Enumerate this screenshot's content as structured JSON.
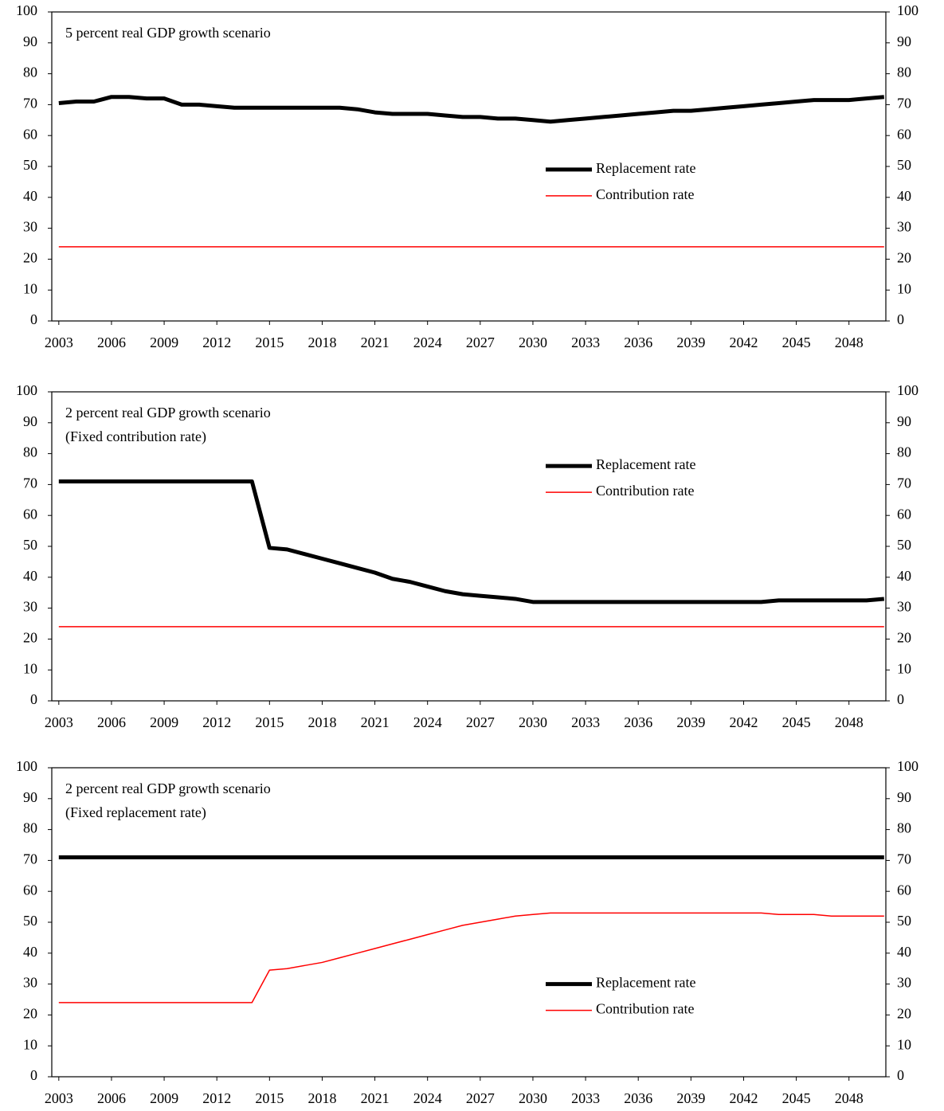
{
  "chart_data": [
    {
      "type": "line",
      "title": "5 percent real GDP growth scenario",
      "x": [
        2003,
        2004,
        2005,
        2006,
        2007,
        2008,
        2009,
        2010,
        2011,
        2012,
        2013,
        2014,
        2015,
        2016,
        2017,
        2018,
        2019,
        2020,
        2021,
        2022,
        2023,
        2024,
        2025,
        2026,
        2027,
        2028,
        2029,
        2030,
        2031,
        2032,
        2033,
        2034,
        2035,
        2036,
        2037,
        2038,
        2039,
        2040,
        2041,
        2042,
        2043,
        2044,
        2045,
        2046,
        2047,
        2048,
        2049,
        2050
      ],
      "series": [
        {
          "name": "Replacement rate",
          "color": "#000000",
          "values": [
            70.5,
            71,
            71,
            72.5,
            72.5,
            72,
            72,
            70,
            70,
            69.5,
            69,
            69,
            69,
            69,
            69,
            69,
            69,
            68.5,
            67.5,
            67,
            67,
            67,
            66.5,
            66,
            66,
            65.5,
            65.5,
            65,
            64.5,
            65,
            65.5,
            66,
            66.5,
            67,
            67.5,
            68,
            68,
            68.5,
            69,
            69.5,
            70,
            70.5,
            71,
            71.5,
            71.5,
            71.5,
            72,
            72.5
          ]
        },
        {
          "name": "Contribution rate",
          "color": "#ff0000",
          "values": [
            24,
            24,
            24,
            24,
            24,
            24,
            24,
            24,
            24,
            24,
            24,
            24,
            24,
            24,
            24,
            24,
            24,
            24,
            24,
            24,
            24,
            24,
            24,
            24,
            24,
            24,
            24,
            24,
            24,
            24,
            24,
            24,
            24,
            24,
            24,
            24,
            24,
            24,
            24,
            24,
            24,
            24,
            24,
            24,
            24,
            24,
            24,
            24
          ]
        }
      ],
      "xlim": [
        2002.6,
        2050.1
      ],
      "xticks": [
        2003,
        2006,
        2009,
        2012,
        2015,
        2018,
        2021,
        2024,
        2027,
        2030,
        2033,
        2036,
        2039,
        2042,
        2045,
        2048
      ],
      "ylim": [
        0,
        100
      ],
      "yticks": [
        0,
        10,
        20,
        30,
        40,
        50,
        60,
        70,
        80,
        90,
        100
      ],
      "y2lim": [
        0,
        100
      ],
      "y2ticks": [
        0,
        10,
        20,
        30,
        40,
        50,
        60,
        70,
        80,
        90,
        100
      ],
      "legend": "center-right"
    },
    {
      "type": "line",
      "title": "2 percent real GDP growth scenario",
      "subtitle": "(Fixed contribution rate)",
      "x": [
        2003,
        2004,
        2005,
        2006,
        2007,
        2008,
        2009,
        2010,
        2011,
        2012,
        2013,
        2014,
        2015,
        2016,
        2017,
        2018,
        2019,
        2020,
        2021,
        2022,
        2023,
        2024,
        2025,
        2026,
        2027,
        2028,
        2029,
        2030,
        2031,
        2032,
        2033,
        2034,
        2035,
        2036,
        2037,
        2038,
        2039,
        2040,
        2041,
        2042,
        2043,
        2044,
        2045,
        2046,
        2047,
        2048,
        2049,
        2050
      ],
      "series": [
        {
          "name": "Replacement rate",
          "color": "#000000",
          "values": [
            71,
            71,
            71,
            71,
            71,
            71,
            71,
            71,
            71,
            71,
            71,
            71,
            49.5,
            49,
            47.5,
            46,
            44.5,
            43,
            41.5,
            39.5,
            38.5,
            37,
            35.5,
            34.5,
            34,
            33.5,
            33,
            32,
            32,
            32,
            32,
            32,
            32,
            32,
            32,
            32,
            32,
            32,
            32,
            32,
            32,
            32.5,
            32.5,
            32.5,
            32.5,
            32.5,
            32.5,
            33
          ]
        },
        {
          "name": "Contribution rate",
          "color": "#ff0000",
          "values": [
            24,
            24,
            24,
            24,
            24,
            24,
            24,
            24,
            24,
            24,
            24,
            24,
            24,
            24,
            24,
            24,
            24,
            24,
            24,
            24,
            24,
            24,
            24,
            24,
            24,
            24,
            24,
            24,
            24,
            24,
            24,
            24,
            24,
            24,
            24,
            24,
            24,
            24,
            24,
            24,
            24,
            24,
            24,
            24,
            24,
            24,
            24,
            24
          ]
        }
      ],
      "xlim": [
        2002.6,
        2050.1
      ],
      "xticks": [
        2003,
        2006,
        2009,
        2012,
        2015,
        2018,
        2021,
        2024,
        2027,
        2030,
        2033,
        2036,
        2039,
        2042,
        2045,
        2048
      ],
      "ylim": [
        0,
        100
      ],
      "yticks": [
        0,
        10,
        20,
        30,
        40,
        50,
        60,
        70,
        80,
        90,
        100
      ],
      "y2lim": [
        0,
        100
      ],
      "y2ticks": [
        0,
        10,
        20,
        30,
        40,
        50,
        60,
        70,
        80,
        90,
        100
      ],
      "legend": "upper-right"
    },
    {
      "type": "line",
      "title": "2 percent real GDP growth scenario",
      "subtitle": "(Fixed replacement rate)",
      "x": [
        2003,
        2004,
        2005,
        2006,
        2007,
        2008,
        2009,
        2010,
        2011,
        2012,
        2013,
        2014,
        2015,
        2016,
        2017,
        2018,
        2019,
        2020,
        2021,
        2022,
        2023,
        2024,
        2025,
        2026,
        2027,
        2028,
        2029,
        2030,
        2031,
        2032,
        2033,
        2034,
        2035,
        2036,
        2037,
        2038,
        2039,
        2040,
        2041,
        2042,
        2043,
        2044,
        2045,
        2046,
        2047,
        2048,
        2049,
        2050
      ],
      "series": [
        {
          "name": "Replacement rate",
          "color": "#000000",
          "values": [
            71,
            71,
            71,
            71,
            71,
            71,
            71,
            71,
            71,
            71,
            71,
            71,
            71,
            71,
            71,
            71,
            71,
            71,
            71,
            71,
            71,
            71,
            71,
            71,
            71,
            71,
            71,
            71,
            71,
            71,
            71,
            71,
            71,
            71,
            71,
            71,
            71,
            71,
            71,
            71,
            71,
            71,
            71,
            71,
            71,
            71,
            71,
            71
          ]
        },
        {
          "name": "Contribution rate",
          "color": "#ff0000",
          "values": [
            24,
            24,
            24,
            24,
            24,
            24,
            24,
            24,
            24,
            24,
            24,
            24,
            34.5,
            35,
            36,
            37,
            38.5,
            40,
            41.5,
            43,
            44.5,
            46,
            47.5,
            49,
            50,
            51,
            52,
            52.5,
            53,
            53,
            53,
            53,
            53,
            53,
            53,
            53,
            53,
            53,
            53,
            53,
            53,
            52.5,
            52.5,
            52.5,
            52,
            52,
            52,
            52
          ]
        }
      ],
      "xlim": [
        2002.6,
        2050.1
      ],
      "xticks": [
        2003,
        2006,
        2009,
        2012,
        2015,
        2018,
        2021,
        2024,
        2027,
        2030,
        2033,
        2036,
        2039,
        2042,
        2045,
        2048
      ],
      "ylim": [
        0,
        100
      ],
      "yticks": [
        0,
        10,
        20,
        30,
        40,
        50,
        60,
        70,
        80,
        90,
        100
      ],
      "y2lim": [
        0,
        100
      ],
      "y2ticks": [
        0,
        10,
        20,
        30,
        40,
        50,
        60,
        70,
        80,
        90,
        100
      ],
      "legend": "lower-right"
    }
  ]
}
